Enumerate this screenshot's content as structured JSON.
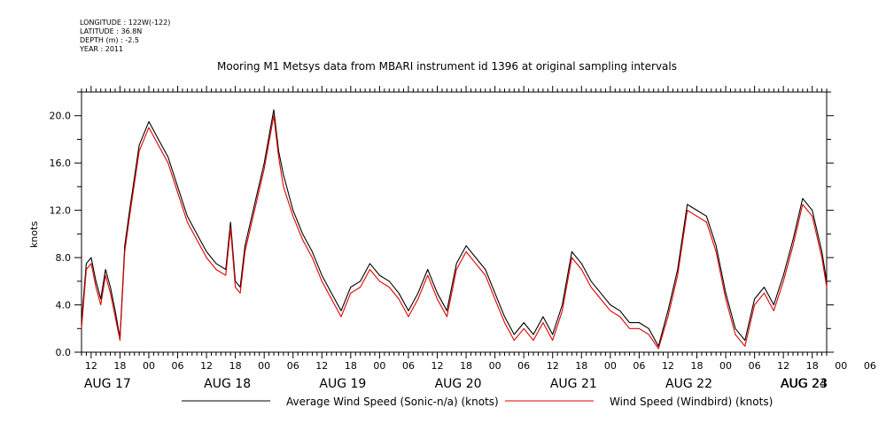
{
  "header": {
    "longitude": "LONGITUDE : 122W(-122)",
    "latitude": "LATITUDE : 36.8N",
    "depth": "DEPTH (m) : -2.5",
    "year": "YEAR : 2011"
  },
  "chart_data": {
    "type": "line",
    "title": "Mooring M1 Metsys data from MBARI instrument id 1396 at original sampling intervals",
    "xlabel": "",
    "ylabel": "knots",
    "ylim": [
      0,
      22
    ],
    "yticks": [
      "0.0",
      "4.0",
      "8.0",
      "12.0",
      "16.0",
      "20.0"
    ],
    "xlim_hours": [
      10,
      165
    ],
    "hour_ticks": [
      "12",
      "18",
      "00",
      "06",
      "12",
      "18",
      "00",
      "06",
      "12",
      "18",
      "00",
      "06",
      "12",
      "18",
      "00",
      "06",
      "12",
      "18",
      "00",
      "06",
      "12",
      "18",
      "00",
      "06",
      "12",
      "18",
      "00",
      "06"
    ],
    "date_labels": [
      "AUG 17",
      "AUG 18",
      "AUG 19",
      "AUG 20",
      "AUG 21",
      "AUG 22",
      "AUG 23",
      "AUG 24"
    ],
    "grid": false,
    "legend_position": "bottom",
    "colors": {
      "series1": "#000000",
      "series2": "#e00000"
    },
    "series": [
      {
        "name": "Average Wind Speed (Sonic-n/a) (knots)",
        "x_hours": [
          10,
          11,
          12,
          13,
          14,
          15,
          16,
          17,
          18,
          19,
          20,
          22,
          24,
          26,
          28,
          30,
          32,
          34,
          36,
          38,
          40,
          41,
          42,
          43,
          44,
          46,
          48,
          50,
          51,
          52,
          54,
          56,
          58,
          60,
          62,
          64,
          66,
          68,
          70,
          72,
          74,
          76,
          78,
          80,
          82,
          84,
          86,
          88,
          90,
          92,
          94,
          96,
          98,
          100,
          102,
          104,
          106,
          108,
          110,
          112,
          114,
          116,
          118,
          120,
          122,
          124,
          126,
          128,
          130,
          132,
          134,
          136,
          138,
          140,
          142,
          144,
          146,
          148,
          150,
          152,
          154,
          156,
          158,
          160,
          162,
          164,
          165
        ],
        "values": [
          2.5,
          7.5,
          8.0,
          6.0,
          4.5,
          7.0,
          5.5,
          3.5,
          1.2,
          9.0,
          12.0,
          17.5,
          19.5,
          18.0,
          16.5,
          14.0,
          11.5,
          10.0,
          8.5,
          7.5,
          7.0,
          11.0,
          6.0,
          5.5,
          9.0,
          12.5,
          16.0,
          20.5,
          17.0,
          15.0,
          12.0,
          10.0,
          8.5,
          6.5,
          5.0,
          3.5,
          5.5,
          6.0,
          7.5,
          6.5,
          6.0,
          5.0,
          3.5,
          5.0,
          7.0,
          5.0,
          3.5,
          7.5,
          9.0,
          8.0,
          7.0,
          5.0,
          3.0,
          1.5,
          2.5,
          1.5,
          3.0,
          1.5,
          4.0,
          8.5,
          7.5,
          6.0,
          5.0,
          4.0,
          3.5,
          2.5,
          2.5,
          2.0,
          0.5,
          3.5,
          7.0,
          12.5,
          12.0,
          11.5,
          9.0,
          5.0,
          2.0,
          1.0,
          4.5,
          5.5,
          4.0,
          6.5,
          9.5,
          13.0,
          12.0,
          8.5,
          6.0
        ],
        "color": "#000000"
      },
      {
        "name": "Wind Speed (Windbird) (knots)",
        "x_hours": [
          10,
          11,
          12,
          13,
          14,
          15,
          16,
          17,
          18,
          19,
          20,
          22,
          24,
          26,
          28,
          30,
          32,
          34,
          36,
          38,
          40,
          41,
          42,
          43,
          44,
          46,
          48,
          50,
          51,
          52,
          54,
          56,
          58,
          60,
          62,
          64,
          66,
          68,
          70,
          72,
          74,
          76,
          78,
          80,
          82,
          84,
          86,
          88,
          90,
          92,
          94,
          96,
          98,
          100,
          102,
          104,
          106,
          108,
          110,
          112,
          114,
          116,
          118,
          120,
          122,
          124,
          126,
          128,
          130,
          132,
          134,
          136,
          138,
          140,
          142,
          144,
          146,
          148,
          150,
          152,
          154,
          156,
          158,
          160,
          162,
          164,
          165
        ],
        "values": [
          2.0,
          7.0,
          7.5,
          5.5,
          4.0,
          6.5,
          5.0,
          3.0,
          1.0,
          8.5,
          11.5,
          17.0,
          19.0,
          17.5,
          16.0,
          13.5,
          11.0,
          9.5,
          8.0,
          7.0,
          6.5,
          10.5,
          5.5,
          5.0,
          8.5,
          12.0,
          15.5,
          20.0,
          16.5,
          14.0,
          11.5,
          9.5,
          8.0,
          6.0,
          4.5,
          3.0,
          5.0,
          5.5,
          7.0,
          6.0,
          5.5,
          4.5,
          3.0,
          4.5,
          6.5,
          4.5,
          3.0,
          7.0,
          8.5,
          7.5,
          6.5,
          4.5,
          2.5,
          1.0,
          2.0,
          1.0,
          2.5,
          1.0,
          3.5,
          8.0,
          7.0,
          5.5,
          4.5,
          3.5,
          3.0,
          2.0,
          2.0,
          1.5,
          0.3,
          3.0,
          6.5,
          12.0,
          11.5,
          11.0,
          8.5,
          4.5,
          1.5,
          0.5,
          4.0,
          5.0,
          3.5,
          6.0,
          9.0,
          12.5,
          11.5,
          8.0,
          5.5
        ],
        "color": "#e00000"
      }
    ]
  }
}
